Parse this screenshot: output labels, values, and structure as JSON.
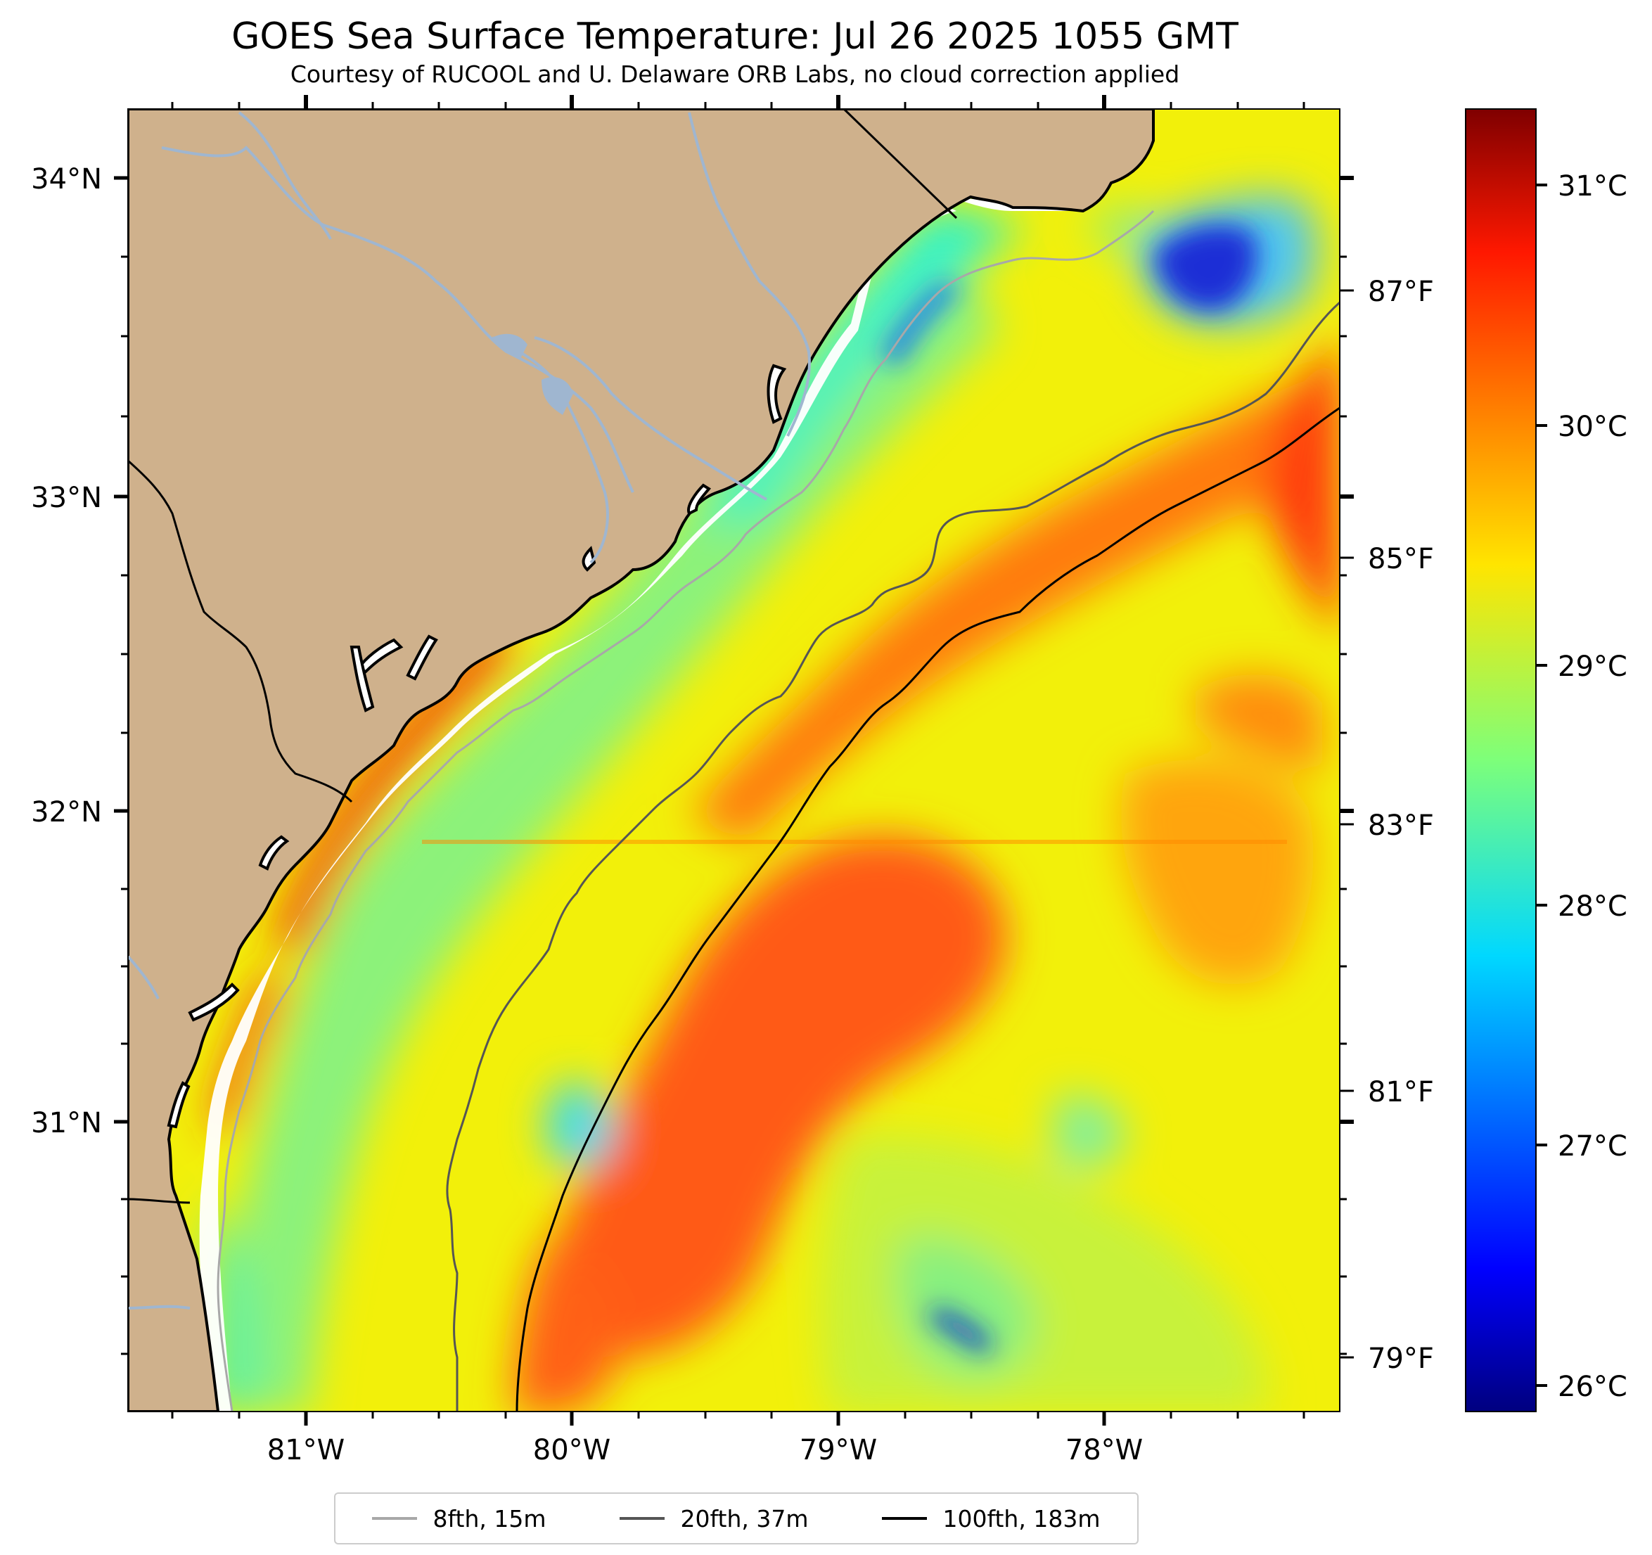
{
  "title": "GOES Sea Surface Temperature: Jul 26 2025 1055 GMT",
  "subtitle": "Courtesy of RUCOOL and U. Delaware ORB Labs, no cloud correction applied",
  "map": {
    "lat_ticks": [
      "34°N",
      "33°N",
      "32°N",
      "31°N"
    ],
    "lon_ticks": [
      "81°W",
      "80°W",
      "79°W",
      "78°W"
    ],
    "fahrenheit_ticks": [
      "87°F",
      "85°F",
      "83°F",
      "81°F",
      "79°F"
    ]
  },
  "colorbar": {
    "ticks": [
      "31°C",
      "30°C",
      "29°C",
      "28°C",
      "27°C",
      "26°C"
    ],
    "range_c": [
      25.8,
      31.4
    ]
  },
  "legend": [
    {
      "label": "8fth, 15m",
      "color": "#a8a8a8"
    },
    {
      "label": "20fth, 37m",
      "color": "#555555"
    },
    {
      "label": "100fth, 183m",
      "color": "#000000"
    }
  ],
  "colors": {
    "land": "#cfb18c",
    "river": "#9fb6d0"
  }
}
